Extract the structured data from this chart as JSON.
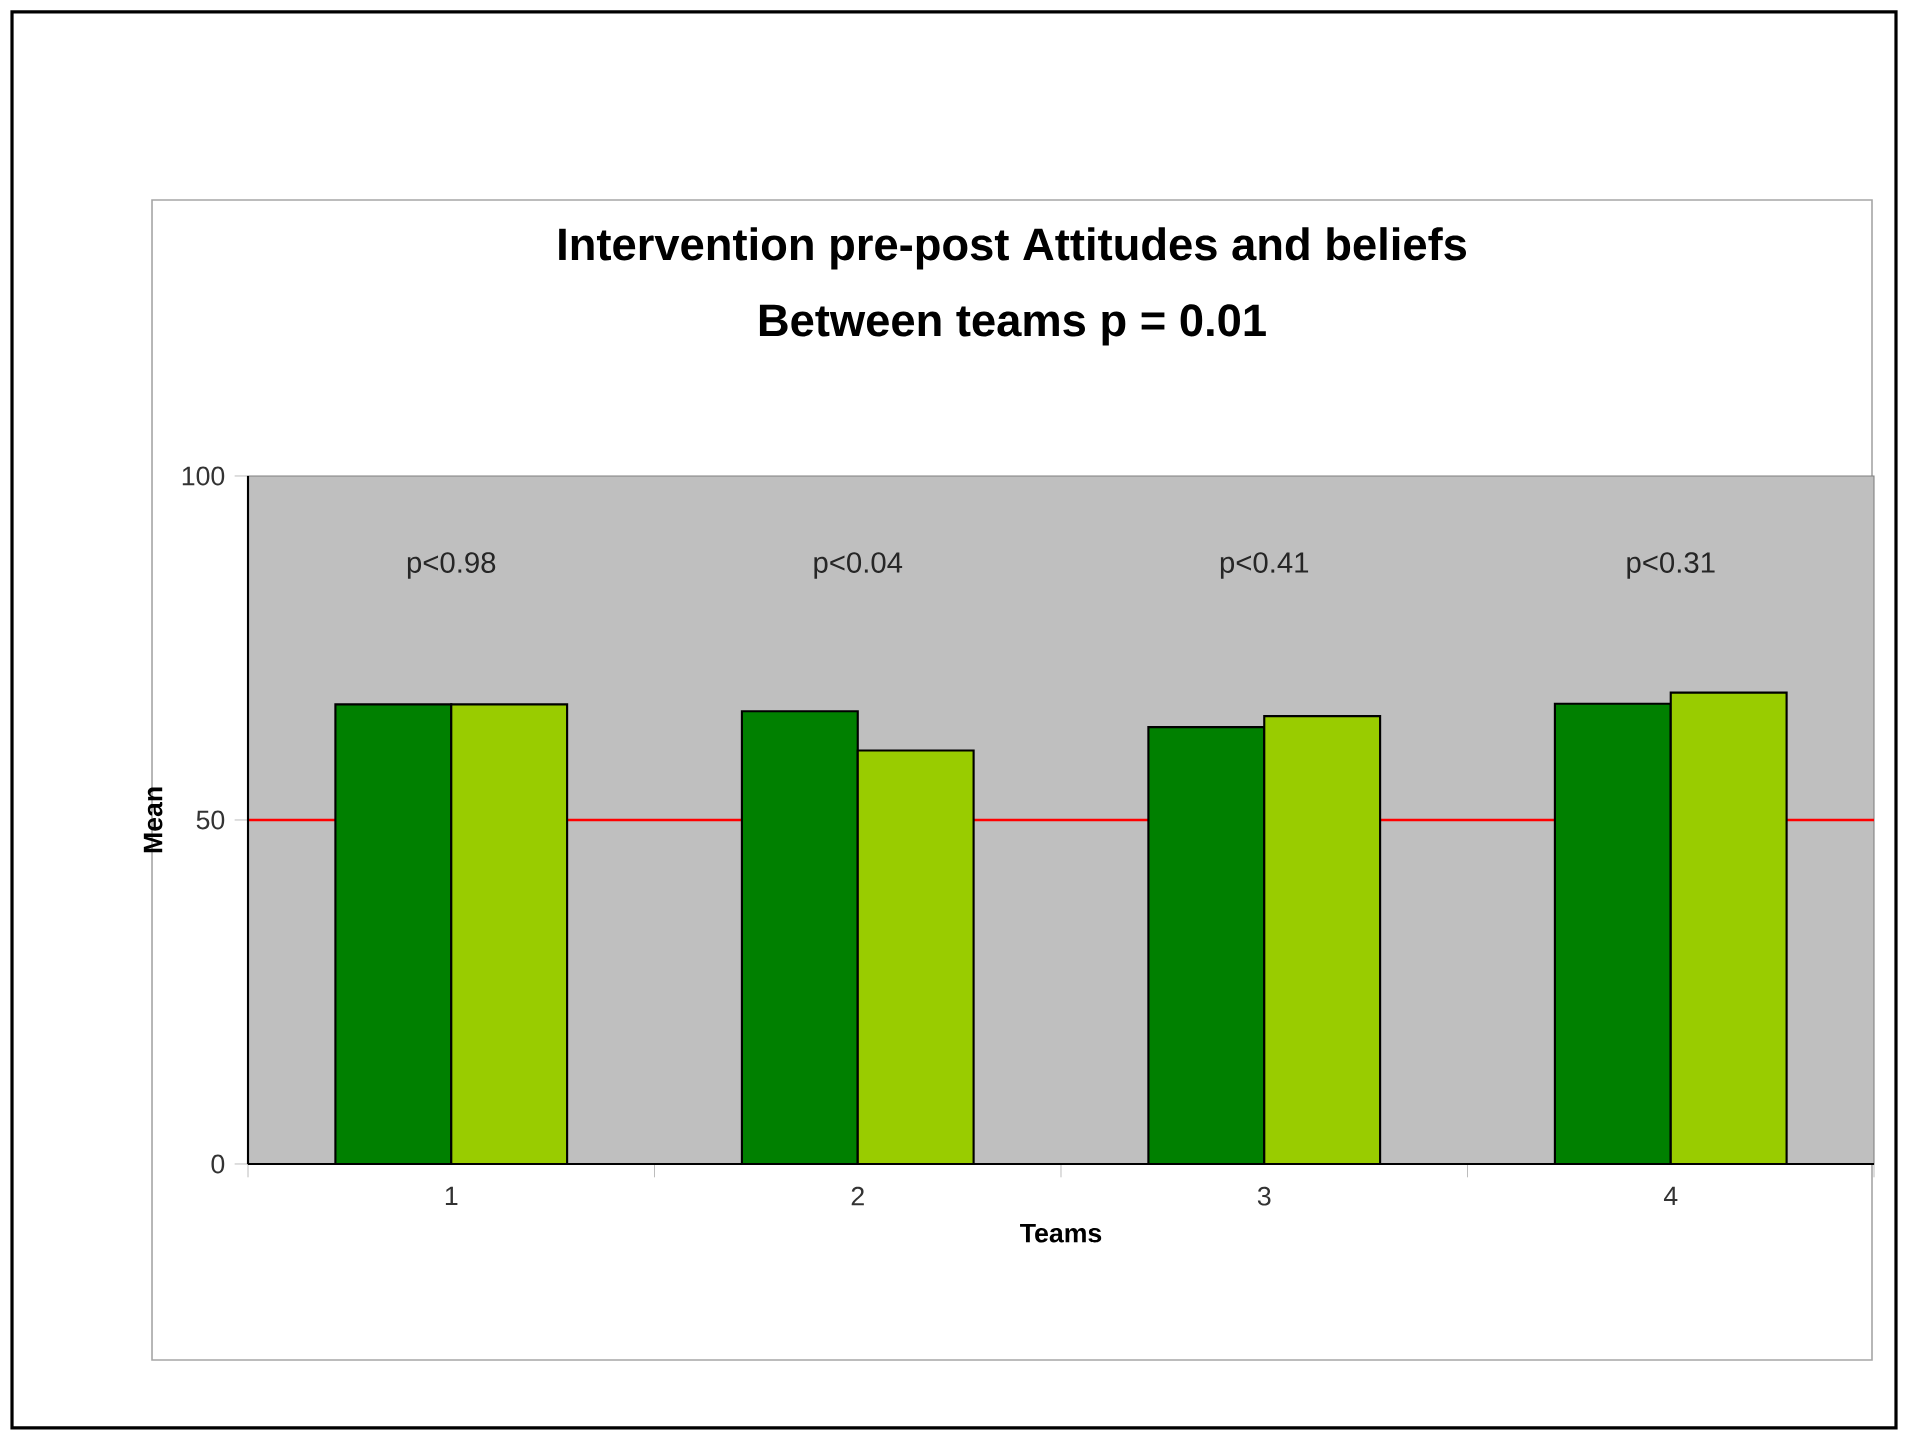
{
  "chart_data": {
    "type": "bar",
    "title": "Intervention pre-post Attitudes and beliefs",
    "subtitle": "Between teams p = 0.01",
    "xlabel": "Teams",
    "ylabel": "Mean",
    "categories": [
      "1",
      "2",
      "3",
      "4"
    ],
    "series": [
      {
        "color": "#008000",
        "values": [
          66.8,
          65.8,
          63.5,
          66.9
        ]
      },
      {
        "color": "#99cc00",
        "values": [
          66.8,
          60.1,
          65.1,
          68.5
        ]
      }
    ],
    "ylim": [
      0,
      100
    ],
    "yticks": [
      0,
      50,
      100
    ],
    "ref_lines": [
      {
        "axis": "y",
        "value": 50,
        "color": "#ff0000"
      }
    ],
    "annotations": [
      "p<0.98",
      "p<0.04",
      "p<0.41",
      "p<0.31"
    ],
    "grid": false
  }
}
